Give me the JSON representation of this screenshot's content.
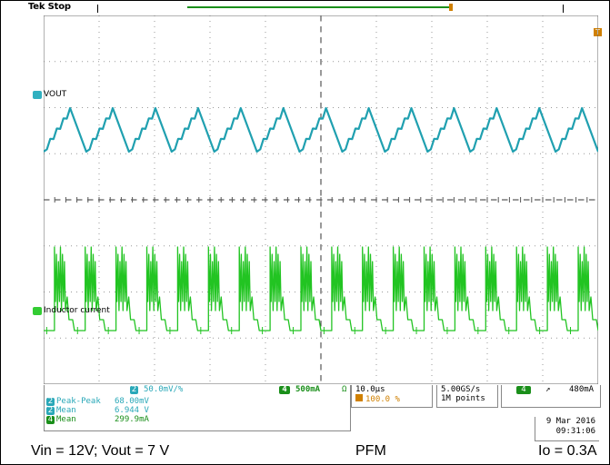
{
  "status": {
    "brand_state": "Tek Stop"
  },
  "channels": {
    "ch2": {
      "number": "2",
      "label": "VOUT",
      "scale": "50.0mV/%",
      "color": "#2aa8b8"
    },
    "ch4": {
      "number": "4",
      "label": "Inductor current",
      "scale": "500mA",
      "bw": "Ω",
      "color": "#33cc33"
    }
  },
  "trigger_marker": "T",
  "measurements": [
    {
      "ch": "2",
      "name": "Peak-Peak",
      "value": "68.00mV"
    },
    {
      "ch": "2",
      "name": "Mean",
      "value": "6.944 V"
    },
    {
      "ch": "4",
      "name": "Mean",
      "value": "299.9mA"
    }
  ],
  "timebase": {
    "per_div": "10.0µs",
    "trigger_position": "100.0 %"
  },
  "acquisition": {
    "sample_rate": "5.00GS/s",
    "record_length": "1M points"
  },
  "trigger": {
    "channel": "4",
    "slope": "↗",
    "level": "480mA"
  },
  "datetime": {
    "date": "9 Mar 2016",
    "time": "09:31:06"
  },
  "caption": {
    "left": "Vin = 12V; Vout = 7 V",
    "middle": "PFM",
    "right": "Io = 0.3A"
  },
  "waveforms": {
    "vout_cycles": 13,
    "inductor_bursts": 18
  }
}
